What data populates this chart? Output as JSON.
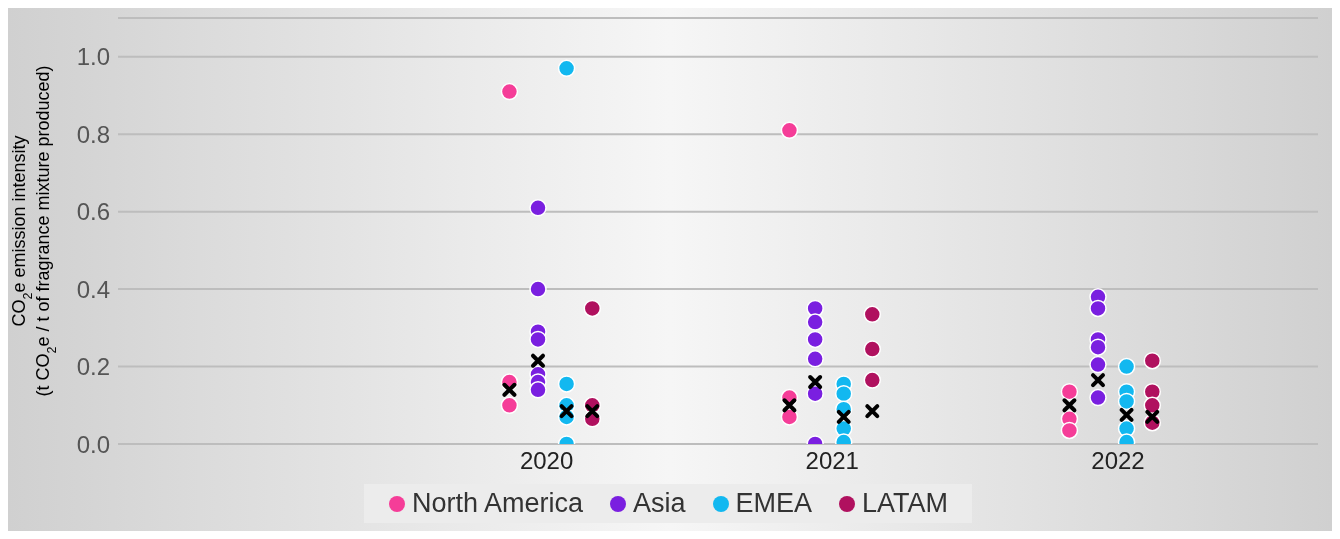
{
  "chart_data": {
    "type": "scatter",
    "ylabel": "CO$_{2}$e emission intensity\n(t CO$_{2}$e / t of fragrance mixture produced)",
    "xlim": [
      2018.5,
      2022.7
    ],
    "xticks": [
      2020,
      2021,
      2022
    ],
    "ylim": [
      0,
      1.1
    ],
    "yticks": [
      {
        "value": 0,
        "label": "0.0"
      },
      {
        "value": 0.2,
        "label": "0.2"
      },
      {
        "value": 0.4,
        "label": "0.4"
      },
      {
        "value": 0.6,
        "label": "0.6"
      },
      {
        "value": 0.8,
        "label": "0.8"
      },
      {
        "value": 1.0,
        "label": "1.0"
      }
    ],
    "grid": "y",
    "legend": "bottom",
    "marker": "circle",
    "series": [
      {
        "name": "North America",
        "color": "#f53d98",
        "x": [
          2019.87,
          2019.87,
          2019.87,
          2020.85,
          2020.85,
          2020.85,
          2021.83,
          2021.83,
          2021.83
        ],
        "values": [
          0.91,
          0.16,
          0.1,
          0.81,
          0.12,
          0.07,
          0.135,
          0.065,
          0.035
        ]
      },
      {
        "name": "Asia",
        "color": "#7a1fe0",
        "x": [
          2019.97,
          2019.97,
          2019.97,
          2019.97,
          2019.97,
          2019.97,
          2019.97,
          2020.94,
          2020.94,
          2020.94,
          2020.94,
          2020.94,
          2020.94,
          2021.93,
          2021.93,
          2021.93,
          2021.93,
          2021.93,
          2021.93
        ],
        "values": [
          0.61,
          0.4,
          0.29,
          0.27,
          0.18,
          0.16,
          0.14,
          0.35,
          0.315,
          0.27,
          0.22,
          0.13,
          0.0,
          0.38,
          0.35,
          0.27,
          0.25,
          0.205,
          0.12
        ]
      },
      {
        "name": "EMEA",
        "color": "#12b8f0",
        "x": [
          2020.07,
          2020.07,
          2020.07,
          2020.07,
          2020.07,
          2021.04,
          2021.04,
          2021.04,
          2021.04,
          2021.04,
          2022.03,
          2022.03,
          2022.03,
          2022.03,
          2022.03
        ],
        "values": [
          0.97,
          0.155,
          0.1,
          0.07,
          0.0,
          0.155,
          0.13,
          0.09,
          0.04,
          0.005,
          0.2,
          0.135,
          0.11,
          0.04,
          0.005
        ]
      },
      {
        "name": "LATAM",
        "color": "#b0115f",
        "x": [
          2020.16,
          2020.16,
          2020.16,
          2021.14,
          2021.14,
          2021.14,
          2022.12,
          2022.12,
          2022.12,
          2022.12
        ],
        "values": [
          0.35,
          0.1,
          0.065,
          0.335,
          0.245,
          0.165,
          0.215,
          0.135,
          0.1,
          0.055
        ]
      },
      {
        "color": "#000000",
        "marker": "cross",
        "x": [
          2019.87,
          2019.97,
          2020.07,
          2020.16,
          2020.85,
          2020.94,
          2021.04,
          2021.14,
          2021.83,
          2021.93,
          2022.03,
          2022.12
        ],
        "values": [
          0.14,
          0.215,
          0.085,
          0.085,
          0.1,
          0.16,
          0.07,
          0.085,
          0.1,
          0.165,
          0.075,
          0.07
        ]
      }
    ]
  }
}
